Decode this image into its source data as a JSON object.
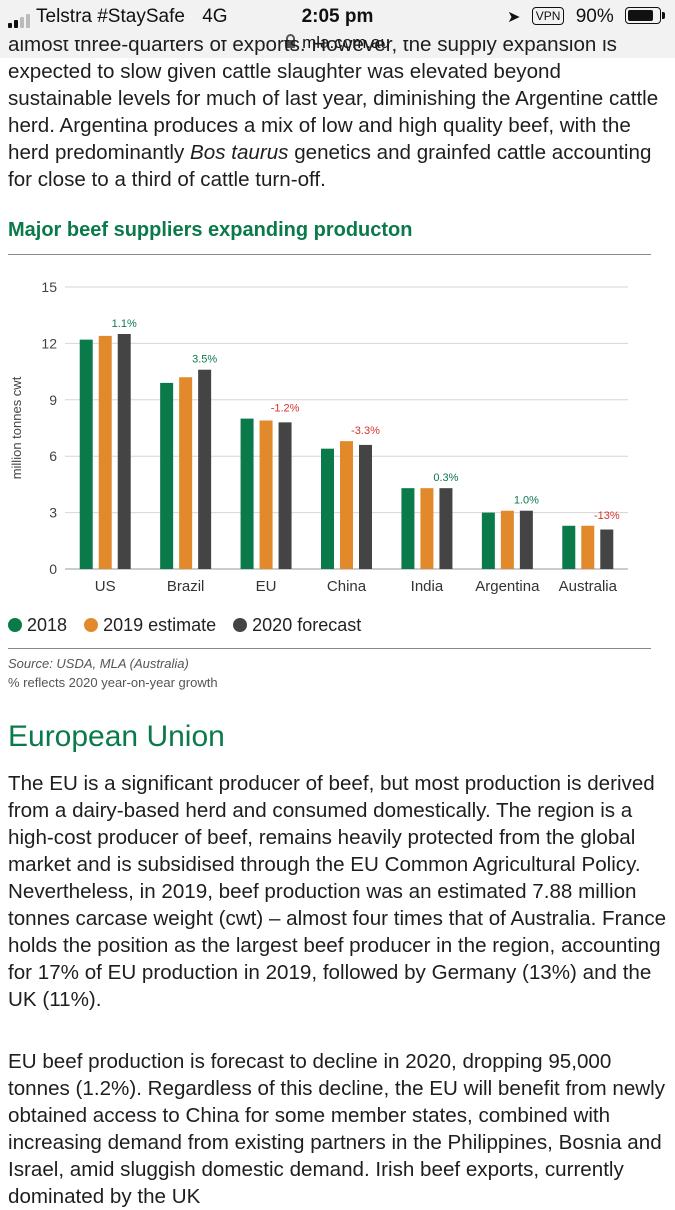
{
  "status_bar": {
    "carrier": "Telstra #StaySafe",
    "network": "4G",
    "time": "2:05 pm",
    "vpn": "VPN",
    "battery": "90%",
    "battery_level": 0.9,
    "url": "mla.com.au"
  },
  "article": {
    "intro_partial": "almost three-quarters of exports. However, the supply expansion is",
    "intro_rest": "expected to slow given cattle slaughter was elevated beyond sustainable levels for much of last year, diminishing the Argentine cattle herd. Argentina produces a mix of low and high quality beef, with the herd predominantly ",
    "intro_italic": "Bos taurus",
    "intro_end": " genetics and grainfed cattle accounting for close to a third of cattle turn-off.",
    "section_title": "European Union",
    "p1": "The EU is a significant producer of beef, but most production is derived from a dairy-based herd and consumed domestically. The region is a high-cost producer of beef, remains heavily protected from the global market and is subsidised through the EU Common Agricultural Policy. Nevertheless, in 2019, beef production was an estimated 7.88 million tonnes carcase weight (cwt) – almost four times that of Australia. France holds the position as the largest beef producer in the region, accounting for 17% of EU production in 2019, followed by Germany (13%) and the UK (11%).",
    "p2": "EU beef production is forecast to decline in 2020, dropping 95,000 tonnes (1.2%). Regardless of this decline, the EU will benefit from newly obtained access to China for some member states, combined with increasing demand from existing partners in the Philippines, Bosnia and Israel, amid sluggish domestic demand. Irish beef exports, currently dominated by the UK"
  },
  "chart_heading": "Major beef suppliers expanding producton",
  "chart_source": "Source: USDA, MLA (Australia)",
  "chart_note": "% reflects 2020 year-on-year growth",
  "colors": {
    "green": "#0b7a4b",
    "orange": "#e28a2b",
    "dark": "#444444",
    "positive_label": "#0b7a4b",
    "negative_label": "#d9332a"
  },
  "chart_data": {
    "type": "bar",
    "title": "Major beef suppliers expanding producton",
    "ylabel": "million tonnes cwt",
    "ylim": [
      0,
      15
    ],
    "yticks": [
      0,
      3,
      6,
      9,
      12,
      15
    ],
    "categories": [
      "US",
      "Brazil",
      "EU",
      "China",
      "India",
      "Argentina",
      "Australia"
    ],
    "series": [
      {
        "name": "2018",
        "values": [
          12.2,
          9.9,
          8.0,
          6.4,
          4.3,
          3.0,
          2.3
        ]
      },
      {
        "name": "2019 estimate",
        "values": [
          12.4,
          10.2,
          7.9,
          6.8,
          4.3,
          3.1,
          2.3
        ]
      },
      {
        "name": "2020 forecast",
        "values": [
          12.5,
          10.6,
          7.8,
          6.6,
          4.3,
          3.1,
          2.1
        ]
      }
    ],
    "growth_labels": [
      "1.1%",
      "3.5%",
      "-1.2%",
      "-3.3%",
      "0.3%",
      "1.0%",
      "-13%"
    ],
    "grid": true,
    "legend_position": "bottom-left"
  }
}
